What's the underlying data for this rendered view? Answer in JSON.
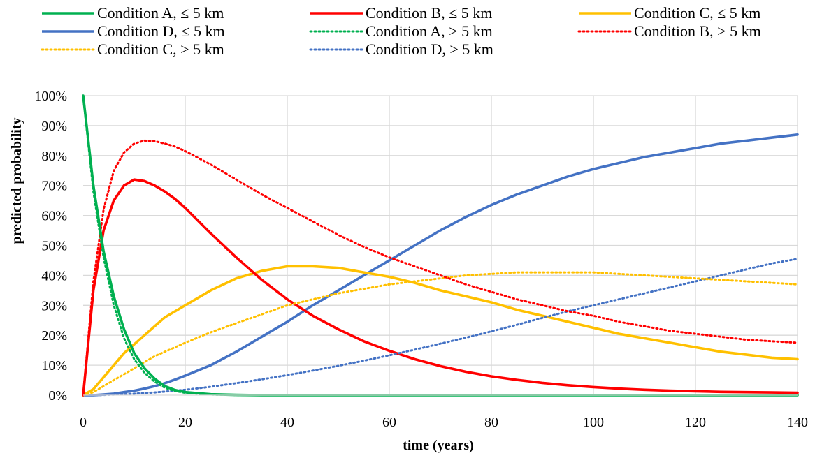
{
  "chart_data": {
    "type": "line",
    "title": "",
    "xlabel": "time (years)",
    "ylabel": "predicted probability",
    "xlim": [
      0,
      140
    ],
    "ylim": [
      0,
      1
    ],
    "x_ticks": [
      "0",
      "20",
      "40",
      "60",
      "80",
      "100",
      "120",
      "140"
    ],
    "y_ticks": [
      "0%",
      "10%",
      "20%",
      "30%",
      "40%",
      "50%",
      "60%",
      "70%",
      "80%",
      "90%",
      "100%"
    ],
    "grid": true,
    "legend_position": "top",
    "x": [
      0,
      2,
      4,
      6,
      8,
      10,
      12,
      14,
      16,
      18,
      20,
      25,
      30,
      35,
      40,
      45,
      50,
      55,
      60,
      65,
      70,
      75,
      80,
      85,
      90,
      95,
      100,
      105,
      110,
      115,
      120,
      125,
      130,
      135,
      140
    ],
    "series": [
      {
        "name": "Condition A, ≤ 5 km",
        "color": "#00b050",
        "style": "solid",
        "values": [
          1.0,
          0.7,
          0.48,
          0.33,
          0.22,
          0.14,
          0.09,
          0.055,
          0.03,
          0.017,
          0.01,
          0.003,
          0.001,
          0,
          0,
          0,
          0,
          0,
          0,
          0,
          0,
          0,
          0,
          0,
          0,
          0,
          0,
          0,
          0,
          0,
          0,
          0,
          0,
          0,
          0
        ]
      },
      {
        "name": "Condition B, ≤ 5 km",
        "color": "#ff0000",
        "style": "solid",
        "values": [
          0,
          0.35,
          0.55,
          0.65,
          0.7,
          0.72,
          0.715,
          0.7,
          0.68,
          0.655,
          0.625,
          0.54,
          0.46,
          0.385,
          0.32,
          0.265,
          0.22,
          0.18,
          0.148,
          0.12,
          0.097,
          0.078,
          0.063,
          0.051,
          0.041,
          0.033,
          0.027,
          0.022,
          0.018,
          0.015,
          0.013,
          0.011,
          0.01,
          0.009,
          0.008
        ]
      },
      {
        "name": "Condition C, ≤ 5 km",
        "color": "#ffc000",
        "style": "solid",
        "values": [
          0,
          0.02,
          0.06,
          0.1,
          0.14,
          0.17,
          0.2,
          0.23,
          0.26,
          0.28,
          0.3,
          0.35,
          0.39,
          0.415,
          0.43,
          0.43,
          0.425,
          0.41,
          0.395,
          0.375,
          0.35,
          0.33,
          0.31,
          0.285,
          0.265,
          0.245,
          0.225,
          0.205,
          0.19,
          0.175,
          0.16,
          0.145,
          0.135,
          0.125,
          0.12
        ]
      },
      {
        "name": "Condition D, ≤ 5 km",
        "color": "#4472c4",
        "style": "solid",
        "values": [
          0,
          0.0,
          0.002,
          0.005,
          0.01,
          0.015,
          0.022,
          0.03,
          0.04,
          0.052,
          0.065,
          0.1,
          0.145,
          0.195,
          0.245,
          0.3,
          0.35,
          0.4,
          0.45,
          0.5,
          0.55,
          0.595,
          0.635,
          0.67,
          0.7,
          0.73,
          0.755,
          0.775,
          0.795,
          0.81,
          0.825,
          0.84,
          0.85,
          0.86,
          0.87
        ]
      },
      {
        "name": "Condition A, > 5 km",
        "color": "#00b050",
        "style": "dotted",
        "values": [
          1.0,
          0.68,
          0.46,
          0.3,
          0.19,
          0.12,
          0.075,
          0.045,
          0.025,
          0.014,
          0.008,
          0.002,
          0.001,
          0,
          0,
          0,
          0,
          0,
          0,
          0,
          0,
          0,
          0,
          0,
          0,
          0,
          0,
          0,
          0,
          0,
          0,
          0,
          0,
          0,
          0
        ]
      },
      {
        "name": "Condition B, > 5 km",
        "color": "#ff0000",
        "style": "dotted",
        "values": [
          0,
          0.38,
          0.62,
          0.75,
          0.81,
          0.84,
          0.85,
          0.848,
          0.84,
          0.83,
          0.815,
          0.77,
          0.72,
          0.67,
          0.625,
          0.58,
          0.535,
          0.495,
          0.46,
          0.43,
          0.4,
          0.37,
          0.345,
          0.32,
          0.3,
          0.28,
          0.265,
          0.245,
          0.23,
          0.215,
          0.205,
          0.195,
          0.185,
          0.18,
          0.175
        ]
      },
      {
        "name": "Condition C, > 5 km",
        "color": "#ffc000",
        "style": "dotted",
        "values": [
          0,
          0.01,
          0.03,
          0.05,
          0.07,
          0.09,
          0.11,
          0.13,
          0.145,
          0.16,
          0.175,
          0.21,
          0.24,
          0.27,
          0.3,
          0.32,
          0.34,
          0.355,
          0.37,
          0.38,
          0.39,
          0.4,
          0.405,
          0.41,
          0.41,
          0.41,
          0.41,
          0.405,
          0.4,
          0.395,
          0.39,
          0.385,
          0.38,
          0.375,
          0.37
        ]
      },
      {
        "name": "Condition D, > 5 km",
        "color": "#4472c4",
        "style": "dotted",
        "values": [
          0,
          0,
          0.001,
          0.002,
          0.003,
          0.005,
          0.007,
          0.009,
          0.012,
          0.015,
          0.018,
          0.028,
          0.04,
          0.053,
          0.067,
          0.082,
          0.098,
          0.115,
          0.133,
          0.152,
          0.172,
          0.192,
          0.213,
          0.235,
          0.258,
          0.28,
          0.3,
          0.32,
          0.34,
          0.36,
          0.38,
          0.4,
          0.42,
          0.44,
          0.455
        ]
      }
    ]
  }
}
